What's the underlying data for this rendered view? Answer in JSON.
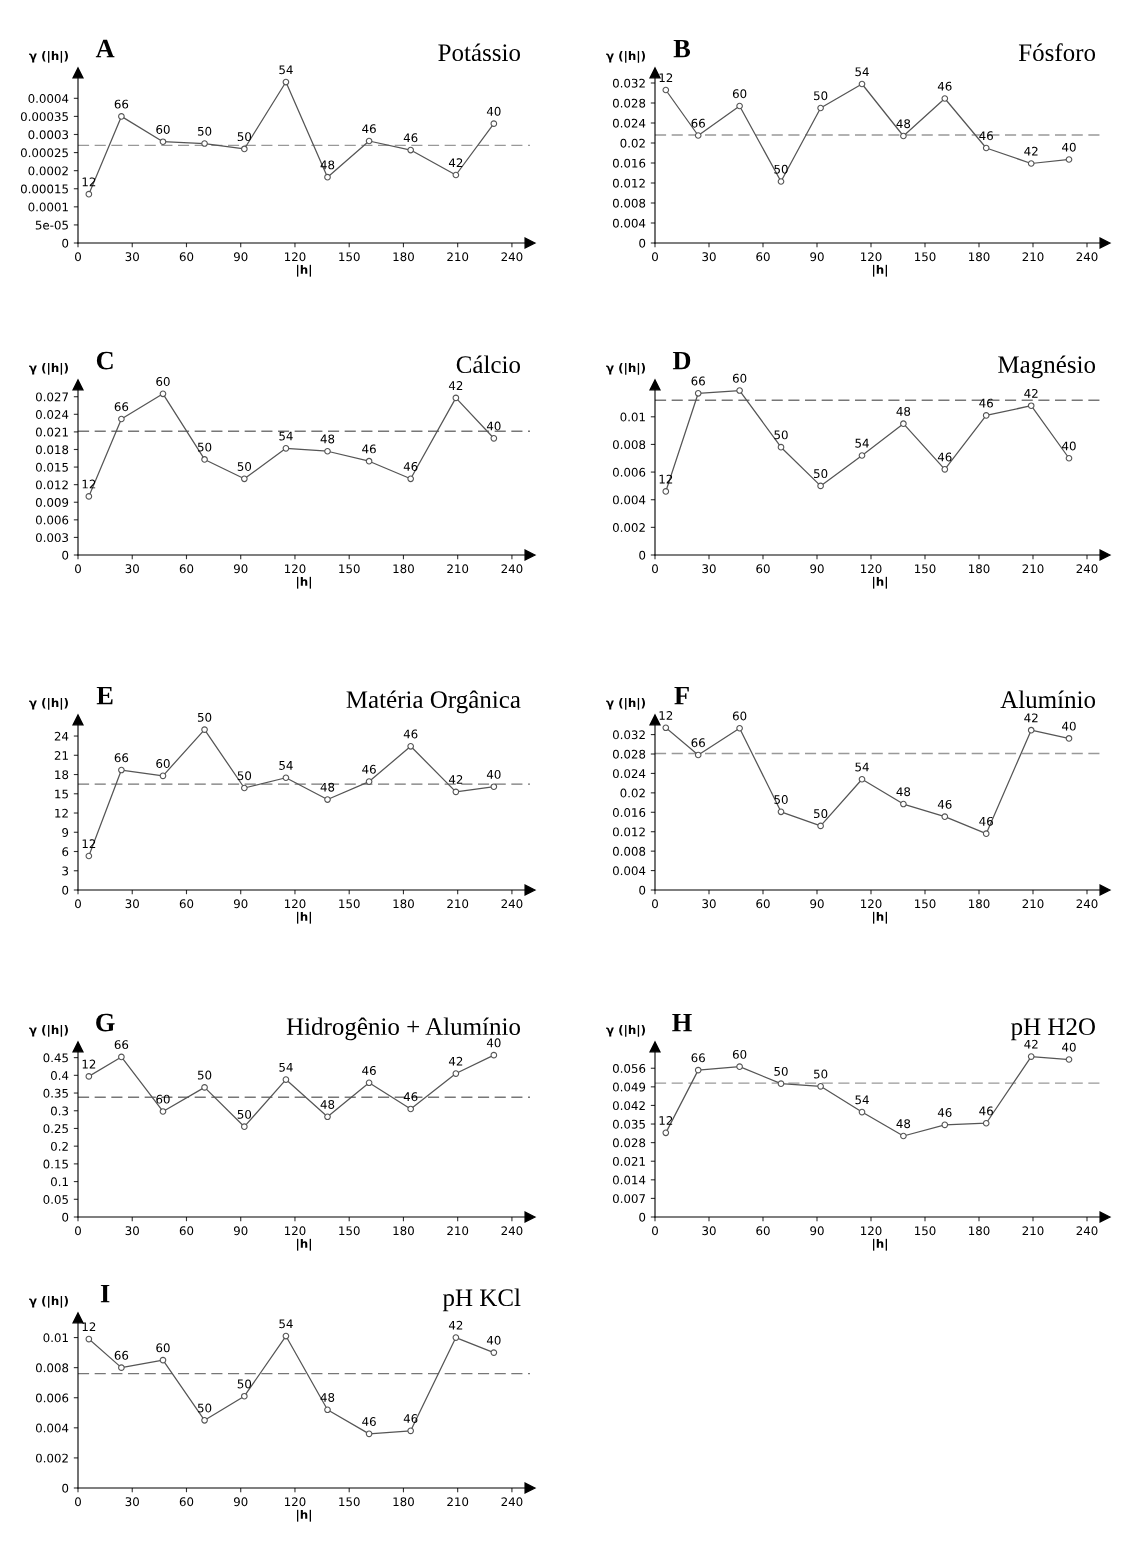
{
  "chart_data": [
    {
      "type": "line",
      "title": "A",
      "subtitle": "Potássio",
      "xlabel": "|h|",
      "ylabel": "γ (|h|)",
      "x": [
        6,
        24,
        47,
        70,
        92,
        115,
        138,
        161,
        184,
        209,
        230
      ],
      "values": [
        0.000135,
        0.00035,
        0.00028,
        0.000275,
        0.00026,
        0.000445,
        0.000182,
        0.000282,
        0.000257,
        0.000188,
        0.00033
      ],
      "color": "#555555",
      "marker": "circle",
      "xlim": [
        0,
        250
      ],
      "xticks": [
        0,
        30,
        60,
        90,
        120,
        150,
        180,
        210,
        240
      ],
      "ylim": [
        0,
        0.00047
      ],
      "yticks": [
        0,
        5e-05,
        0.0001,
        0.00015,
        0.0002,
        0.00025,
        0.0003,
        0.00035,
        0.0004
      ],
      "ref_lines": [
        {
          "axis": "y",
          "value": 0.00027,
          "color": "#999999",
          "line_style": "dashed"
        }
      ],
      "annotations": [
        {
          "text": "12",
          "x": 6,
          "y": 0.000135
        },
        {
          "text": "66",
          "x": 24,
          "y": 0.00035
        },
        {
          "text": "60",
          "x": 47,
          "y": 0.00028
        },
        {
          "text": "50",
          "x": 70,
          "y": 0.000275
        },
        {
          "text": "50",
          "x": 92,
          "y": 0.00026
        },
        {
          "text": "54",
          "x": 115,
          "y": 0.000445
        },
        {
          "text": "48",
          "x": 138,
          "y": 0.000182
        },
        {
          "text": "46",
          "x": 161,
          "y": 0.000282
        },
        {
          "text": "46",
          "x": 184,
          "y": 0.000257
        },
        {
          "text": "42",
          "x": 209,
          "y": 0.000188
        },
        {
          "text": "40",
          "x": 230,
          "y": 0.00033
        }
      ]
    },
    {
      "type": "line",
      "title": "B",
      "subtitle": "Fósforo",
      "xlabel": "|h|",
      "ylabel": "γ (|h|)",
      "x": [
        6,
        24,
        47,
        70,
        92,
        115,
        138,
        161,
        184,
        209,
        230
      ],
      "values": [
        0.0306,
        0.0215,
        0.0274,
        0.0123,
        0.027,
        0.0318,
        0.0214,
        0.0289,
        0.019,
        0.0159,
        0.0167
      ],
      "color": "#555555",
      "marker": "circle",
      "xlim": [
        0,
        250
      ],
      "xticks": [
        0,
        30,
        60,
        90,
        120,
        150,
        180,
        210,
        240
      ],
      "ylim": [
        0,
        0.034
      ],
      "yticks": [
        0,
        0.004,
        0.008,
        0.012,
        0.016,
        0.02,
        0.024,
        0.028,
        0.032
      ],
      "ref_lines": [
        {
          "axis": "y",
          "value": 0.0216,
          "color": "#999999",
          "line_style": "dashed"
        }
      ],
      "annotations": [
        {
          "text": "12",
          "x": 6,
          "y": 0.0306
        },
        {
          "text": "66",
          "x": 24,
          "y": 0.0215
        },
        {
          "text": "60",
          "x": 47,
          "y": 0.0274
        },
        {
          "text": "50",
          "x": 70,
          "y": 0.0123
        },
        {
          "text": "50",
          "x": 92,
          "y": 0.027
        },
        {
          "text": "54",
          "x": 115,
          "y": 0.0318
        },
        {
          "text": "48",
          "x": 138,
          "y": 0.0214
        },
        {
          "text": "46",
          "x": 161,
          "y": 0.0289
        },
        {
          "text": "46",
          "x": 184,
          "y": 0.019
        },
        {
          "text": "42",
          "x": 209,
          "y": 0.0159
        },
        {
          "text": "40",
          "x": 230,
          "y": 0.0167
        }
      ]
    },
    {
      "type": "line",
      "title": "C",
      "subtitle": "Cálcio",
      "xlabel": "|h|",
      "ylabel": "γ (|h|)",
      "x": [
        6,
        24,
        47,
        70,
        92,
        115,
        138,
        161,
        184,
        209,
        230
      ],
      "values": [
        0.01,
        0.0232,
        0.0275,
        0.0163,
        0.013,
        0.0182,
        0.0177,
        0.016,
        0.013,
        0.0268,
        0.0199
      ],
      "color": "#555555",
      "marker": "circle",
      "xlim": [
        0,
        250
      ],
      "xticks": [
        0,
        30,
        60,
        90,
        120,
        150,
        180,
        210,
        240
      ],
      "ylim": [
        0,
        0.029
      ],
      "yticks": [
        0,
        0.003,
        0.006,
        0.009,
        0.012,
        0.015,
        0.018,
        0.021,
        0.024,
        0.027
      ],
      "ref_lines": [
        {
          "axis": "y",
          "value": 0.0211,
          "color": "#777777",
          "line_style": "dashed"
        }
      ],
      "annotations": [
        {
          "text": "12",
          "x": 6,
          "y": 0.01
        },
        {
          "text": "66",
          "x": 24,
          "y": 0.0232
        },
        {
          "text": "60",
          "x": 47,
          "y": 0.0275
        },
        {
          "text": "50",
          "x": 70,
          "y": 0.0163
        },
        {
          "text": "50",
          "x": 92,
          "y": 0.013
        },
        {
          "text": "54",
          "x": 115,
          "y": 0.0182
        },
        {
          "text": "48",
          "x": 138,
          "y": 0.0177
        },
        {
          "text": "46",
          "x": 161,
          "y": 0.016
        },
        {
          "text": "46",
          "x": 184,
          "y": 0.013
        },
        {
          "text": "42",
          "x": 209,
          "y": 0.0268
        },
        {
          "text": "40",
          "x": 230,
          "y": 0.0199
        }
      ]
    },
    {
      "type": "line",
      "title": "D",
      "subtitle": "Magnésio",
      "xlabel": "|h|",
      "ylabel": "γ (|h|)",
      "x": [
        6,
        24,
        47,
        70,
        92,
        115,
        138,
        161,
        184,
        209,
        230
      ],
      "values": [
        0.0046,
        0.0117,
        0.0119,
        0.0078,
        0.005,
        0.0072,
        0.0095,
        0.0062,
        0.0101,
        0.0108,
        0.007
      ],
      "color": "#555555",
      "marker": "circle",
      "xlim": [
        0,
        250
      ],
      "xticks": [
        0,
        30,
        60,
        90,
        120,
        150,
        180,
        210,
        240
      ],
      "ylim": [
        0,
        0.0123
      ],
      "yticks": [
        0,
        0.002,
        0.004,
        0.006,
        0.008,
        0.01
      ],
      "ref_lines": [
        {
          "axis": "y",
          "value": 0.0112,
          "color": "#777777",
          "line_style": "dashed"
        }
      ],
      "annotations": [
        {
          "text": "12",
          "x": 6,
          "y": 0.0046
        },
        {
          "text": "66",
          "x": 24,
          "y": 0.0117
        },
        {
          "text": "60",
          "x": 47,
          "y": 0.0119
        },
        {
          "text": "50",
          "x": 70,
          "y": 0.0078
        },
        {
          "text": "50",
          "x": 92,
          "y": 0.005
        },
        {
          "text": "54",
          "x": 115,
          "y": 0.0072
        },
        {
          "text": "48",
          "x": 138,
          "y": 0.0095
        },
        {
          "text": "46",
          "x": 161,
          "y": 0.0062
        },
        {
          "text": "46",
          "x": 184,
          "y": 0.0101
        },
        {
          "text": "42",
          "x": 209,
          "y": 0.0108
        },
        {
          "text": "40",
          "x": 230,
          "y": 0.007
        }
      ]
    },
    {
      "type": "line",
      "title": "E",
      "subtitle": "Matéria Orgânica",
      "xlabel": "|h|",
      "ylabel": "γ (|h|)",
      "x": [
        6,
        24,
        47,
        70,
        92,
        115,
        138,
        161,
        184,
        209,
        230
      ],
      "values": [
        5.3,
        18.7,
        17.8,
        25.0,
        15.9,
        17.5,
        14.1,
        16.9,
        22.4,
        15.3,
        16.1
      ],
      "color": "#555555",
      "marker": "circle",
      "xlim": [
        0,
        250
      ],
      "xticks": [
        0,
        30,
        60,
        90,
        120,
        150,
        180,
        210,
        240
      ],
      "ylim": [
        0,
        26.5
      ],
      "yticks": [
        0,
        3,
        6,
        9,
        12,
        15,
        18,
        21,
        24
      ],
      "ref_lines": [
        {
          "axis": "y",
          "value": 16.5,
          "color": "#777777",
          "line_style": "dashed"
        }
      ],
      "annotations": [
        {
          "text": "12",
          "x": 6,
          "y": 5.3
        },
        {
          "text": "66",
          "x": 24,
          "y": 18.7
        },
        {
          "text": "60",
          "x": 47,
          "y": 17.8
        },
        {
          "text": "50",
          "x": 70,
          "y": 25.0
        },
        {
          "text": "50",
          "x": 92,
          "y": 15.9
        },
        {
          "text": "54",
          "x": 115,
          "y": 17.5
        },
        {
          "text": "48",
          "x": 138,
          "y": 14.1
        },
        {
          "text": "46",
          "x": 161,
          "y": 16.9
        },
        {
          "text": "46",
          "x": 184,
          "y": 22.4
        },
        {
          "text": "42",
          "x": 209,
          "y": 15.3
        },
        {
          "text": "40",
          "x": 230,
          "y": 16.1
        }
      ]
    },
    {
      "type": "line",
      "title": "F",
      "subtitle": "Alumínio",
      "xlabel": "|h|",
      "ylabel": "γ (|h|)",
      "x": [
        6,
        24,
        47,
        70,
        92,
        115,
        138,
        161,
        184,
        209,
        230
      ],
      "values": [
        0.0334,
        0.0278,
        0.0333,
        0.0161,
        0.0132,
        0.0228,
        0.0177,
        0.0151,
        0.0116,
        0.0329,
        0.0312
      ],
      "color": "#555555",
      "marker": "circle",
      "xlim": [
        0,
        250
      ],
      "xticks": [
        0,
        30,
        60,
        90,
        120,
        150,
        180,
        210,
        240
      ],
      "ylim": [
        0,
        0.035
      ],
      "yticks": [
        0,
        0.004,
        0.008,
        0.012,
        0.016,
        0.02,
        0.024,
        0.028,
        0.032
      ],
      "ref_lines": [
        {
          "axis": "y",
          "value": 0.0281,
          "color": "#999999",
          "line_style": "dashed"
        }
      ],
      "annotations": [
        {
          "text": "12",
          "x": 6,
          "y": 0.0334
        },
        {
          "text": "66",
          "x": 24,
          "y": 0.0278
        },
        {
          "text": "60",
          "x": 47,
          "y": 0.0333
        },
        {
          "text": "50",
          "x": 70,
          "y": 0.0161
        },
        {
          "text": "50",
          "x": 92,
          "y": 0.0132
        },
        {
          "text": "54",
          "x": 115,
          "y": 0.0228
        },
        {
          "text": "48",
          "x": 138,
          "y": 0.0177
        },
        {
          "text": "46",
          "x": 161,
          "y": 0.0151
        },
        {
          "text": "46",
          "x": 184,
          "y": 0.0116
        },
        {
          "text": "42",
          "x": 209,
          "y": 0.0329
        },
        {
          "text": "40",
          "x": 230,
          "y": 0.0312
        }
      ]
    },
    {
      "type": "line",
      "title": "G",
      "subtitle": "Hidrogênio + Alumínio",
      "xlabel": "|h|",
      "ylabel": "γ (|h|)",
      "x": [
        6,
        24,
        47,
        70,
        92,
        115,
        138,
        161,
        184,
        209,
        230
      ],
      "values": [
        0.397,
        0.452,
        0.298,
        0.366,
        0.255,
        0.388,
        0.283,
        0.379,
        0.305,
        0.405,
        0.457
      ],
      "color": "#555555",
      "marker": "circle",
      "xlim": [
        0,
        250
      ],
      "xticks": [
        0,
        30,
        60,
        90,
        120,
        150,
        180,
        210,
        240
      ],
      "ylim": [
        0,
        0.48
      ],
      "yticks": [
        0,
        0.05,
        0.1,
        0.15,
        0.2,
        0.25,
        0.3,
        0.35,
        0.4,
        0.45
      ],
      "ref_lines": [
        {
          "axis": "y",
          "value": 0.338,
          "color": "#777777",
          "line_style": "dashed"
        }
      ],
      "annotations": [
        {
          "text": "12",
          "x": 6,
          "y": 0.397
        },
        {
          "text": "66",
          "x": 24,
          "y": 0.452
        },
        {
          "text": "60",
          "x": 47,
          "y": 0.298
        },
        {
          "text": "50",
          "x": 70,
          "y": 0.366
        },
        {
          "text": "50",
          "x": 92,
          "y": 0.255
        },
        {
          "text": "54",
          "x": 115,
          "y": 0.388
        },
        {
          "text": "48",
          "x": 138,
          "y": 0.283
        },
        {
          "text": "46",
          "x": 161,
          "y": 0.379
        },
        {
          "text": "46",
          "x": 184,
          "y": 0.305
        },
        {
          "text": "42",
          "x": 209,
          "y": 0.405
        },
        {
          "text": "40",
          "x": 230,
          "y": 0.457
        }
      ]
    },
    {
      "type": "line",
      "title": "H",
      "subtitle": "pH H2O",
      "xlabel": "|h|",
      "ylabel": "γ (|h|)",
      "x": [
        6,
        24,
        47,
        70,
        92,
        115,
        138,
        161,
        184,
        209,
        230
      ],
      "values": [
        0.0317,
        0.0553,
        0.0566,
        0.0502,
        0.0492,
        0.0395,
        0.0305,
        0.0347,
        0.0353,
        0.0604,
        0.0593
      ],
      "color": "#555555",
      "marker": "circle",
      "xlim": [
        0,
        250
      ],
      "xticks": [
        0,
        30,
        60,
        90,
        120,
        150,
        180,
        210,
        240
      ],
      "ylim": [
        0,
        0.064
      ],
      "yticks": [
        0,
        0.007,
        0.014,
        0.021,
        0.028,
        0.035,
        0.042,
        0.049,
        0.056
      ],
      "ref_lines": [
        {
          "axis": "y",
          "value": 0.0504,
          "color": "#999999",
          "line_style": "dashed"
        }
      ],
      "annotations": [
        {
          "text": "12",
          "x": 6,
          "y": 0.0317
        },
        {
          "text": "66",
          "x": 24,
          "y": 0.0553
        },
        {
          "text": "60",
          "x": 47,
          "y": 0.0566
        },
        {
          "text": "50",
          "x": 70,
          "y": 0.0502
        },
        {
          "text": "50",
          "x": 92,
          "y": 0.0492
        },
        {
          "text": "54",
          "x": 115,
          "y": 0.0395
        },
        {
          "text": "48",
          "x": 138,
          "y": 0.0305
        },
        {
          "text": "46",
          "x": 161,
          "y": 0.0347
        },
        {
          "text": "46",
          "x": 184,
          "y": 0.0353
        },
        {
          "text": "42",
          "x": 209,
          "y": 0.0604
        },
        {
          "text": "40",
          "x": 230,
          "y": 0.0593
        }
      ]
    },
    {
      "type": "line",
      "title": "I",
      "subtitle": "pH KCl",
      "xlabel": "|h|",
      "ylabel": "γ (|h|)",
      "x": [
        6,
        24,
        47,
        70,
        92,
        115,
        138,
        161,
        184,
        209,
        230
      ],
      "values": [
        0.0099,
        0.008,
        0.0085,
        0.0045,
        0.0061,
        0.0101,
        0.0052,
        0.0036,
        0.0038,
        0.01,
        0.009
      ],
      "color": "#555555",
      "marker": "circle",
      "xlim": [
        0,
        250
      ],
      "xticks": [
        0,
        30,
        60,
        90,
        120,
        150,
        180,
        210,
        240
      ],
      "ylim": [
        0,
        0.0113
      ],
      "yticks": [
        0,
        0.002,
        0.004,
        0.006,
        0.008,
        0.01
      ],
      "ref_lines": [
        {
          "axis": "y",
          "value": 0.0076,
          "color": "#777777",
          "line_style": "dashed"
        }
      ],
      "annotations": [
        {
          "text": "12",
          "x": 6,
          "y": 0.0099
        },
        {
          "text": "66",
          "x": 24,
          "y": 0.008
        },
        {
          "text": "60",
          "x": 47,
          "y": 0.0085
        },
        {
          "text": "50",
          "x": 70,
          "y": 0.0045
        },
        {
          "text": "50",
          "x": 92,
          "y": 0.0061
        },
        {
          "text": "54",
          "x": 115,
          "y": 0.0101
        },
        {
          "text": "48",
          "x": 138,
          "y": 0.0052
        },
        {
          "text": "46",
          "x": 161,
          "y": 0.0036
        },
        {
          "text": "46",
          "x": 184,
          "y": 0.0038
        },
        {
          "text": "42",
          "x": 209,
          "y": 0.01
        },
        {
          "text": "40",
          "x": 230,
          "y": 0.009
        }
      ]
    }
  ]
}
